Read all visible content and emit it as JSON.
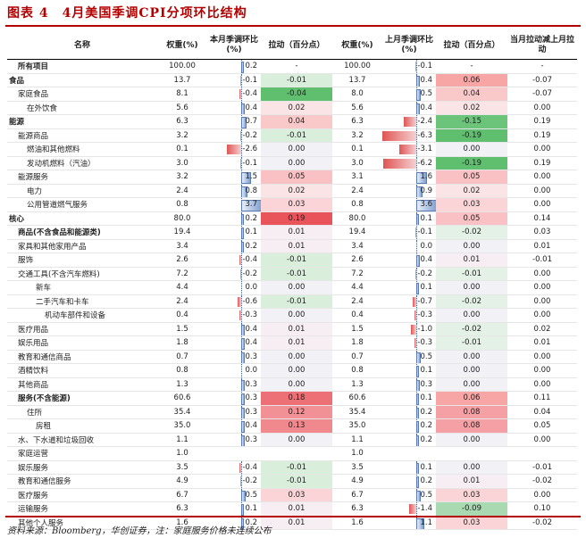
{
  "title": "图表 4　4月美国季调CPI分项环比结构",
  "headers": {
    "name": "名称",
    "weight_cur": "权重(%)",
    "mom_cur": "本月季调环比(%)",
    "pull_cur": "拉动（百分点）",
    "weight_prev": "权重(%)",
    "mom_prev": "上月季调环比(%)",
    "pull_prev": "拉动（百分点）",
    "diff": "当月拉动减上月拉动"
  },
  "rows": [
    {
      "name": "所有项目",
      "indent": 1,
      "bold": true,
      "w1": "100.00",
      "m1": "0.2",
      "p1": "-",
      "w2": "100.00",
      "m2": "-0.1",
      "p2": "-",
      "d": "-",
      "m1v": 0.2,
      "m2v": -0.1,
      "p1c": "",
      "p2c": ""
    },
    {
      "name": "食品",
      "indent": 0,
      "bold": true,
      "w1": "13.7",
      "m1": "-0.1",
      "p1": "-0.01",
      "w2": "13.7",
      "m2": "0.4",
      "p2": "0.06",
      "d": "-0.07",
      "m1v": -0.1,
      "m2v": 0.4,
      "p1c": "#d9efdc",
      "p2c": "#f7a5a5"
    },
    {
      "name": "家庭食品",
      "indent": 1,
      "bold": false,
      "w1": "8.1",
      "m1": "-0.4",
      "p1": "-0.04",
      "w2": "8.0",
      "m2": "0.5",
      "p2": "0.04",
      "d": "-0.07",
      "m1v": -0.4,
      "m2v": 0.5,
      "p1c": "#5fbf6f",
      "p2c": "#f9c8c8"
    },
    {
      "name": "在外饮食",
      "indent": 2,
      "bold": false,
      "w1": "5.6",
      "m1": "0.4",
      "p1": "0.02",
      "w2": "5.6",
      "m2": "0.4",
      "p2": "0.02",
      "d": "0.00",
      "m1v": 0.4,
      "m2v": 0.4,
      "p1c": "#fbe4e6",
      "p2c": "#fbe4e6"
    },
    {
      "name": "能源",
      "indent": 0,
      "bold": true,
      "w1": "6.3",
      "m1": "0.7",
      "p1": "0.04",
      "w2": "6.3",
      "m2": "-2.4",
      "p2": "-0.15",
      "d": "0.19",
      "m1v": 0.7,
      "m2v": -2.4,
      "p1c": "#f9c8c8",
      "p2c": "#6cc47a"
    },
    {
      "name": "能源商品",
      "indent": 1,
      "bold": false,
      "w1": "3.2",
      "m1": "-0.2",
      "p1": "-0.01",
      "w2": "3.2",
      "m2": "-6.3",
      "p2": "-0.19",
      "d": "0.19",
      "m1v": -0.2,
      "m2v": -6.3,
      "p1c": "#d9efdc",
      "p2c": "#5fbf6f"
    },
    {
      "name": "燃油和其他燃料",
      "indent": 2,
      "bold": false,
      "w1": "0.1",
      "m1": "-2.6",
      "p1": "0.00",
      "w2": "0.1",
      "m2": "-3.1",
      "p2": "0.00",
      "d": "0.00",
      "m1v": -2.6,
      "m2v": -3.1,
      "p1c": "#f2f2f6",
      "p2c": "#f2f2f6"
    },
    {
      "name": "发动机燃料（汽油）",
      "indent": 2,
      "bold": false,
      "w1": "3.0",
      "m1": "-0.1",
      "p1": "0.00",
      "w2": "3.0",
      "m2": "-6.2",
      "p2": "-0.19",
      "d": "0.19",
      "m1v": -0.1,
      "m2v": -6.2,
      "p1c": "#f2f2f6",
      "p2c": "#5fbf6f"
    },
    {
      "name": "能源服务",
      "indent": 1,
      "bold": false,
      "w1": "3.2",
      "m1": "1.5",
      "p1": "0.05",
      "w2": "3.1",
      "m2": "1.6",
      "p2": "0.05",
      "d": "0.00",
      "m1v": 1.5,
      "m2v": 1.6,
      "p1c": "#f9c1c3",
      "p2c": "#f9c1c3"
    },
    {
      "name": "电力",
      "indent": 2,
      "bold": false,
      "w1": "2.4",
      "m1": "0.8",
      "p1": "0.02",
      "w2": "2.4",
      "m2": "0.9",
      "p2": "0.02",
      "d": "0.00",
      "m1v": 0.8,
      "m2v": 0.9,
      "p1c": "#fbe4e6",
      "p2c": "#fbe4e6"
    },
    {
      "name": "公用管道燃气服务",
      "indent": 2,
      "bold": false,
      "w1": "0.8",
      "m1": "3.7",
      "p1": "0.03",
      "w2": "0.8",
      "m2": "3.6",
      "p2": "0.03",
      "d": "0.00",
      "m1v": 3.7,
      "m2v": 3.6,
      "p1c": "#fad4d6",
      "p2c": "#fad4d6"
    },
    {
      "name": "核心",
      "indent": 0,
      "bold": true,
      "w1": "80.0",
      "m1": "0.2",
      "p1": "0.19",
      "w2": "80.0",
      "m2": "0.1",
      "p2": "0.05",
      "d": "0.14",
      "m1v": 0.2,
      "m2v": 0.1,
      "p1c": "#e8545a",
      "p2c": "#f9c1c3",
      "sep": true
    },
    {
      "name": "商品(不含食品和能源类)",
      "indent": 1,
      "bold": true,
      "w1": "19.4",
      "m1": "0.1",
      "p1": "0.01",
      "w2": "19.4",
      "m2": "-0.1",
      "p2": "-0.02",
      "d": "0.03",
      "m1v": 0.1,
      "m2v": -0.1,
      "p1c": "#f6eef2",
      "p2c": "#e4f1e6"
    },
    {
      "name": "家具和其他家用产品",
      "indent": 1,
      "bold": false,
      "w1": "3.4",
      "m1": "0.2",
      "p1": "0.01",
      "w2": "3.4",
      "m2": "0.0",
      "p2": "0.00",
      "d": "0.01",
      "m1v": 0.2,
      "m2v": 0.0,
      "p1c": "#f6eef2",
      "p2c": "#f2f2f6"
    },
    {
      "name": "服饰",
      "indent": 1,
      "bold": false,
      "w1": "2.6",
      "m1": "-0.4",
      "p1": "-0.01",
      "w2": "2.6",
      "m2": "0.4",
      "p2": "0.01",
      "d": "-0.01",
      "m1v": -0.4,
      "m2v": 0.4,
      "p1c": "#d9efdc",
      "p2c": "#f6eef2"
    },
    {
      "name": "交通工具(不含汽车燃料)",
      "indent": 1,
      "bold": false,
      "w1": "7.2",
      "m1": "-0.2",
      "p1": "-0.01",
      "w2": "7.2",
      "m2": "-0.2",
      "p2": "-0.01",
      "d": "0.00",
      "m1v": -0.2,
      "m2v": -0.2,
      "p1c": "#d9efdc",
      "p2c": "#e4f1e6"
    },
    {
      "name": "新车",
      "indent": 3,
      "bold": false,
      "w1": "4.4",
      "m1": "0.0",
      "p1": "0.00",
      "w2": "4.4",
      "m2": "0.1",
      "p2": "0.00",
      "d": "0.00",
      "m1v": 0.0,
      "m2v": 0.1,
      "p1c": "#f2f2f6",
      "p2c": "#f2f2f6"
    },
    {
      "name": "二手汽车和卡车",
      "indent": 3,
      "bold": false,
      "w1": "2.4",
      "m1": "-0.6",
      "p1": "-0.01",
      "w2": "2.4",
      "m2": "-0.7",
      "p2": "-0.02",
      "d": "0.00",
      "m1v": -0.6,
      "m2v": -0.7,
      "p1c": "#d9efdc",
      "p2c": "#e4f1e6"
    },
    {
      "name": "机动车部件和设备",
      "indent": 4,
      "bold": false,
      "w1": "0.4",
      "m1": "-0.3",
      "p1": "0.00",
      "w2": "0.4",
      "m2": "-0.3",
      "p2": "0.00",
      "d": "0.00",
      "m1v": -0.3,
      "m2v": -0.3,
      "p1c": "#f2f2f6",
      "p2c": "#f2f2f6"
    },
    {
      "name": "医疗用品",
      "indent": 1,
      "bold": false,
      "w1": "1.5",
      "m1": "0.4",
      "p1": "0.01",
      "w2": "1.5",
      "m2": "-1.0",
      "p2": "-0.02",
      "d": "0.02",
      "m1v": 0.4,
      "m2v": -1.0,
      "p1c": "#f6eef2",
      "p2c": "#e4f1e6"
    },
    {
      "name": "娱乐用品",
      "indent": 1,
      "bold": false,
      "w1": "1.8",
      "m1": "0.4",
      "p1": "0.01",
      "w2": "1.8",
      "m2": "-0.3",
      "p2": "-0.01",
      "d": "0.01",
      "m1v": 0.4,
      "m2v": -0.3,
      "p1c": "#f6eef2",
      "p2c": "#e4f1e6"
    },
    {
      "name": "教育和通信商品",
      "indent": 1,
      "bold": false,
      "w1": "0.7",
      "m1": "0.3",
      "p1": "0.00",
      "w2": "0.7",
      "m2": "0.5",
      "p2": "0.00",
      "d": "0.00",
      "m1v": 0.3,
      "m2v": 0.5,
      "p1c": "#f2f2f6",
      "p2c": "#f2f2f6"
    },
    {
      "name": "酒精饮料",
      "indent": 1,
      "bold": false,
      "w1": "0.8",
      "m1": "0.0",
      "p1": "0.00",
      "w2": "0.8",
      "m2": "0.1",
      "p2": "0.00",
      "d": "0.00",
      "m1v": 0.0,
      "m2v": 0.1,
      "p1c": "#f2f2f6",
      "p2c": "#f2f2f6"
    },
    {
      "name": "其他商品",
      "indent": 1,
      "bold": false,
      "w1": "1.3",
      "m1": "0.3",
      "p1": "0.00",
      "w2": "1.3",
      "m2": "0.3",
      "p2": "0.00",
      "d": "0.00",
      "m1v": 0.3,
      "m2v": 0.3,
      "p1c": "#f2f2f6",
      "p2c": "#f2f2f6"
    },
    {
      "name": "服务(不含能源)",
      "indent": 1,
      "bold": true,
      "w1": "60.6",
      "m1": "0.3",
      "p1": "0.18",
      "w2": "60.6",
      "m2": "0.1",
      "p2": "0.06",
      "d": "0.11",
      "m1v": 0.3,
      "m2v": 0.1,
      "p1c": "#ec7075",
      "p2c": "#f7a5a5",
      "sep": true
    },
    {
      "name": "住所",
      "indent": 2,
      "bold": false,
      "w1": "35.4",
      "m1": "0.3",
      "p1": "0.12",
      "w2": "35.4",
      "m2": "0.2",
      "p2": "0.08",
      "d": "0.04",
      "m1v": 0.3,
      "m2v": 0.2,
      "p1c": "#f19196",
      "p2c": "#f4a0a4"
    },
    {
      "name": "房租",
      "indent": 3,
      "bold": false,
      "w1": "35.0",
      "m1": "0.4",
      "p1": "0.13",
      "w2": "35.0",
      "m2": "0.2",
      "p2": "0.08",
      "d": "0.05",
      "m1v": 0.4,
      "m2v": 0.2,
      "p1c": "#f0898e",
      "p2c": "#f4a0a4"
    },
    {
      "name": "水、下水道和垃圾回收",
      "indent": 1,
      "bold": false,
      "w1": "1.1",
      "m1": "0.3",
      "p1": "0.00",
      "w2": "1.1",
      "m2": "0.2",
      "p2": "0.00",
      "d": "0.00",
      "m1v": 0.3,
      "m2v": 0.2,
      "p1c": "#f2f2f6",
      "p2c": "#f2f2f6"
    },
    {
      "name": "家庭运营",
      "indent": 1,
      "bold": false,
      "w1": "1.0",
      "m1": "",
      "p1": "",
      "w2": "1.0",
      "m2": "",
      "p2": "",
      "d": "",
      "m1v": 0,
      "m2v": 0,
      "p1c": "",
      "p2c": "",
      "nobar": true
    },
    {
      "name": "娱乐服务",
      "indent": 1,
      "bold": false,
      "w1": "3.5",
      "m1": "-0.4",
      "p1": "-0.01",
      "w2": "3.5",
      "m2": "0.1",
      "p2": "0.00",
      "d": "-0.01",
      "m1v": -0.4,
      "m2v": 0.1,
      "p1c": "#d9efdc",
      "p2c": "#f2f2f6"
    },
    {
      "name": "教育和通信服务",
      "indent": 1,
      "bold": false,
      "w1": "4.9",
      "m1": "-0.2",
      "p1": "-0.01",
      "w2": "4.9",
      "m2": "0.2",
      "p2": "0.01",
      "d": "-0.02",
      "m1v": -0.2,
      "m2v": 0.2,
      "p1c": "#d9efdc",
      "p2c": "#f6eef2"
    },
    {
      "name": "医疗服务",
      "indent": 1,
      "bold": false,
      "w1": "6.7",
      "m1": "0.5",
      "p1": "0.03",
      "w2": "6.7",
      "m2": "0.5",
      "p2": "0.03",
      "d": "0.00",
      "m1v": 0.5,
      "m2v": 0.5,
      "p1c": "#fad4d6",
      "p2c": "#fad4d6"
    },
    {
      "name": "运输服务",
      "indent": 1,
      "bold": false,
      "w1": "6.3",
      "m1": "0.1",
      "p1": "0.01",
      "w2": "6.3",
      "m2": "-1.4",
      "p2": "-0.09",
      "d": "0.10",
      "m1v": 0.1,
      "m2v": -1.4,
      "p1c": "#f6eef2",
      "p2c": "#a8d9b0"
    },
    {
      "name": "其他个人服务",
      "indent": 1,
      "bold": false,
      "w1": "1.6",
      "m1": "0.2",
      "p1": "0.01",
      "w2": "1.6",
      "m2": "1.1",
      "p2": "0.03",
      "d": "-0.02",
      "m1v": 0.2,
      "m2v": 1.1,
      "p1c": "#f6eef2",
      "p2c": "#fad4d6"
    }
  ],
  "footer": "资料来源：Bloomberg，华创证券，注：家庭服务价格未连续公布"
}
